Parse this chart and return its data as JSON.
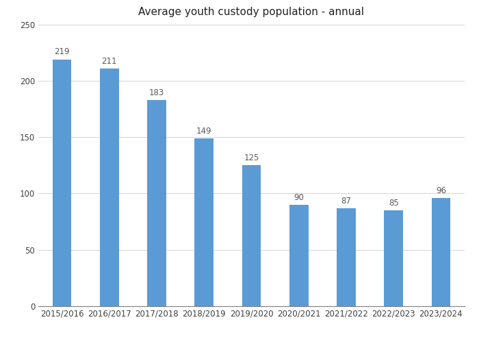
{
  "title": "Average youth custody population - annual",
  "categories": [
    "2015/2016",
    "2016/2017",
    "2017/2018",
    "2018/2019",
    "2019/2020",
    "2020/2021",
    "2021/2022",
    "2022/2023",
    "2023/2024"
  ],
  "values": [
    219,
    211,
    183,
    149,
    125,
    90,
    87,
    85,
    96
  ],
  "bar_color": "#5B9BD5",
  "ylim": [
    0,
    250
  ],
  "yticks": [
    0,
    50,
    100,
    150,
    200,
    250
  ],
  "title_fontsize": 11,
  "tick_fontsize": 8.5,
  "bar_label_fontsize": 8.5,
  "background_color": "#ffffff",
  "grid_color": "#d9d9d9",
  "label_color": "#595959",
  "bar_width": 0.4
}
